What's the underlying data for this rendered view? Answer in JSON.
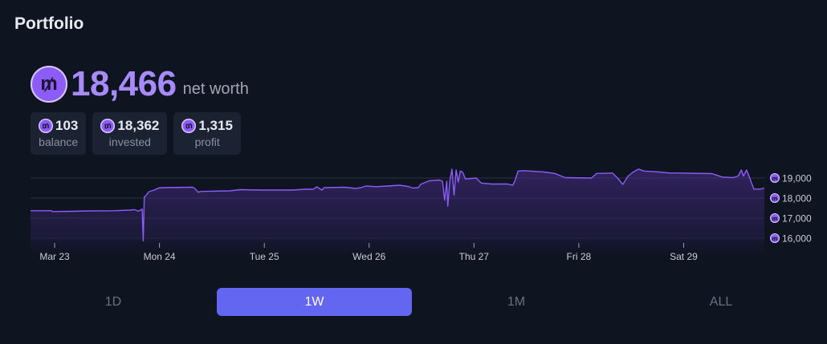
{
  "header": {
    "title": "Portfolio"
  },
  "net_worth": {
    "coin_symbol": "₥",
    "value": "18,466",
    "label": "net worth"
  },
  "stats": [
    {
      "value": "103",
      "label": "balance"
    },
    {
      "value": "18,362",
      "label": "invested"
    },
    {
      "value": "1,315",
      "label": "profit"
    }
  ],
  "range_tabs": [
    {
      "label": "1D",
      "active": false
    },
    {
      "label": "1W",
      "active": true
    },
    {
      "label": "1M",
      "active": false
    },
    {
      "label": "ALL",
      "active": false
    }
  ],
  "colors": {
    "accent": "#a78bfa",
    "line": "#8b5cf6",
    "active_tab": "#6366f1",
    "background": "#0f1421"
  },
  "chart_data": {
    "type": "area",
    "title": "",
    "xlabel": "",
    "ylabel": "",
    "x_tick_labels": [
      "Mar 23",
      "Mon 24",
      "Tue 25",
      "Wed 26",
      "Thu 27",
      "Fri 28",
      "Sat 29"
    ],
    "y_tick_labels": [
      "19,000",
      "18,000",
      "17,000",
      "16,000"
    ],
    "y_ticks": [
      19000,
      18000,
      17000,
      16000
    ],
    "ylim": [
      15500,
      19400
    ],
    "xlim": [
      0,
      7
    ],
    "grid": true,
    "series": [
      {
        "points": [
          [
            0.0,
            17370
          ],
          [
            0.2,
            17370
          ],
          [
            0.21,
            17330
          ],
          [
            0.4,
            17340
          ],
          [
            0.55,
            17360
          ],
          [
            0.8,
            17370
          ],
          [
            0.95,
            17400
          ],
          [
            0.99,
            17420
          ],
          [
            1.03,
            17350
          ],
          [
            1.065,
            17450
          ],
          [
            1.075,
            15870
          ],
          [
            1.085,
            18060
          ],
          [
            1.1,
            18120
          ],
          [
            1.13,
            18320
          ],
          [
            1.18,
            18400
          ],
          [
            1.22,
            18500
          ],
          [
            1.26,
            18520
          ],
          [
            1.55,
            18540
          ],
          [
            1.57,
            18460
          ],
          [
            1.6,
            18290
          ],
          [
            1.62,
            18330
          ],
          [
            1.9,
            18360
          ],
          [
            2.0,
            18420
          ],
          [
            2.2,
            18400
          ],
          [
            2.5,
            18400
          ],
          [
            2.62,
            18440
          ],
          [
            2.68,
            18440
          ],
          [
            2.7,
            18450
          ],
          [
            2.73,
            18560
          ],
          [
            2.78,
            18400
          ],
          [
            2.8,
            18520
          ],
          [
            3.0,
            18540
          ],
          [
            3.1,
            18480
          ],
          [
            3.15,
            18520
          ],
          [
            3.2,
            18600
          ],
          [
            3.3,
            18570
          ],
          [
            3.4,
            18600
          ],
          [
            3.52,
            18640
          ],
          [
            3.6,
            18580
          ],
          [
            3.65,
            18500
          ],
          [
            3.7,
            18520
          ],
          [
            3.72,
            18680
          ],
          [
            3.8,
            18860
          ],
          [
            3.9,
            18900
          ],
          [
            3.93,
            18840
          ],
          [
            3.95,
            17900
          ],
          [
            3.97,
            18850
          ],
          [
            3.98,
            17600
          ],
          [
            4.0,
            18880
          ],
          [
            4.02,
            19450
          ],
          [
            4.04,
            18150
          ],
          [
            4.06,
            19400
          ],
          [
            4.08,
            18800
          ],
          [
            4.1,
            19350
          ],
          [
            4.12,
            19300
          ],
          [
            4.15,
            18950
          ],
          [
            4.25,
            19000
          ],
          [
            4.3,
            18750
          ],
          [
            4.4,
            18700
          ],
          [
            4.55,
            18700
          ],
          [
            4.6,
            18640
          ],
          [
            4.62,
            18850
          ],
          [
            4.65,
            19350
          ],
          [
            4.7,
            19370
          ],
          [
            4.9,
            19300
          ],
          [
            5.0,
            19230
          ],
          [
            5.1,
            19020
          ],
          [
            5.35,
            19000
          ],
          [
            5.4,
            19230
          ],
          [
            5.55,
            19250
          ],
          [
            5.6,
            19000
          ],
          [
            5.65,
            18680
          ],
          [
            5.7,
            19100
          ],
          [
            5.75,
            19300
          ],
          [
            5.8,
            19450
          ],
          [
            5.85,
            19350
          ],
          [
            6.0,
            19300
          ],
          [
            6.1,
            19250
          ],
          [
            6.2,
            19250
          ],
          [
            6.5,
            19220
          ],
          [
            6.6,
            19050
          ],
          [
            6.7,
            19020
          ],
          [
            6.75,
            19100
          ],
          [
            6.78,
            19400
          ],
          [
            6.8,
            19100
          ],
          [
            6.83,
            19400
          ],
          [
            6.85,
            19150
          ],
          [
            6.88,
            18720
          ],
          [
            6.9,
            18450
          ],
          [
            6.96,
            18450
          ],
          [
            7.0,
            18500
          ]
        ]
      }
    ]
  }
}
